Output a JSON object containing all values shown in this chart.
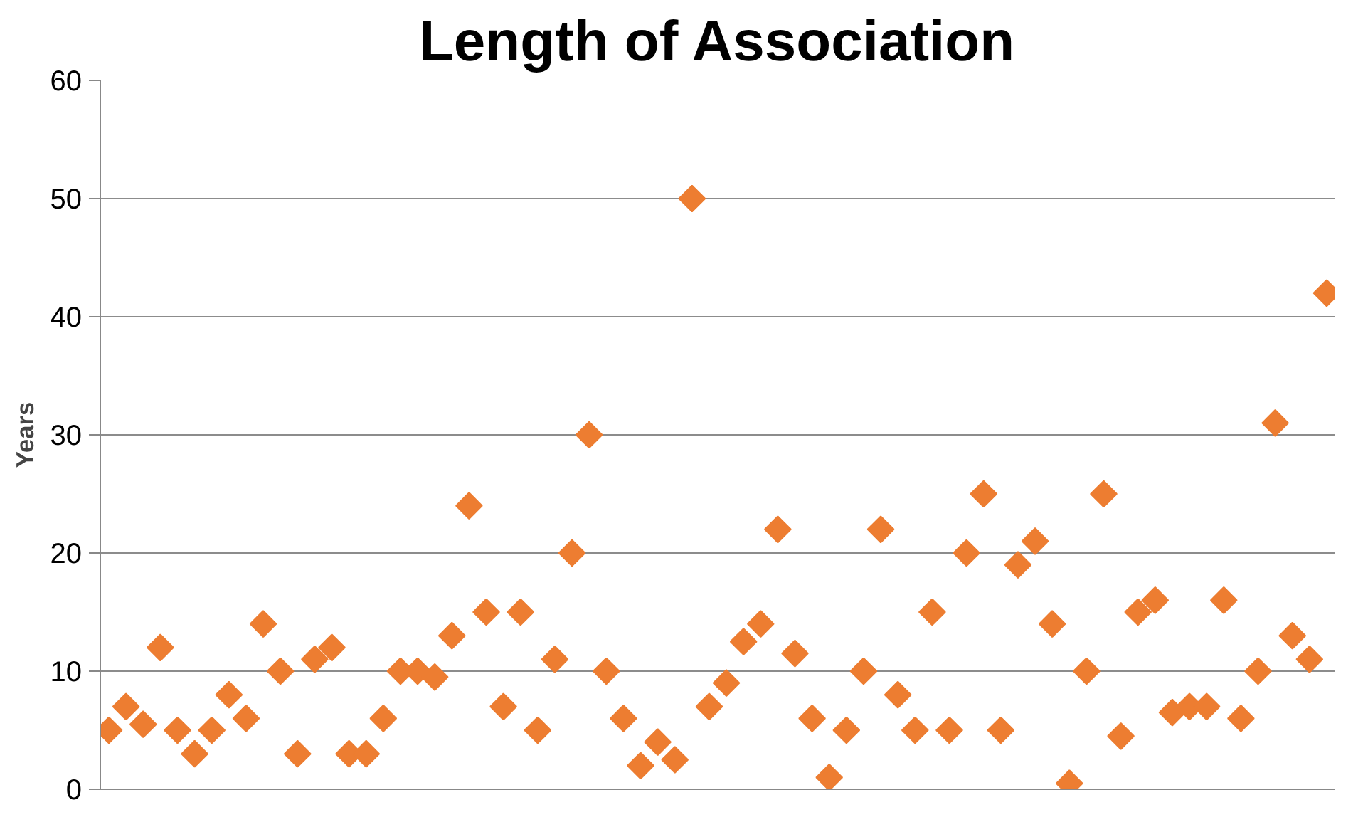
{
  "chart_data": {
    "type": "scatter",
    "title": "Length of Association",
    "ylabel": "Years",
    "categories": [
      null,
      null,
      null,
      null,
      null,
      null,
      null,
      null,
      null,
      null,
      null,
      null,
      null,
      null,
      null,
      null,
      null,
      null,
      null,
      null,
      null,
      null,
      null,
      null,
      null,
      null,
      null,
      null,
      null,
      null,
      null,
      null,
      null,
      null,
      null,
      null,
      null,
      null,
      null,
      null,
      null,
      null,
      null,
      null,
      null,
      null,
      null,
      null,
      null,
      null,
      null,
      null,
      null,
      null,
      null,
      null,
      null,
      null,
      null,
      null,
      null,
      null,
      null,
      null,
      null,
      null,
      null,
      null,
      null,
      null,
      null,
      null
    ],
    "series": [
      {
        "color": "#ed7d31",
        "values": [
          5,
          7,
          5.5,
          12,
          5,
          3,
          5,
          8,
          6,
          14,
          10,
          3,
          11,
          12,
          3,
          3,
          6,
          10,
          10,
          9.5,
          13,
          24,
          15,
          7,
          15,
          5,
          11,
          20,
          30,
          10,
          6,
          2,
          4,
          2.5,
          50,
          7,
          9,
          12.5,
          14,
          22,
          11.5,
          6,
          1,
          5,
          10,
          22,
          8,
          5,
          15,
          5,
          20,
          25,
          5,
          19,
          21,
          14,
          0.5,
          10,
          25,
          4.5,
          15,
          16,
          6.5,
          7,
          7,
          16,
          6,
          10,
          31,
          13,
          11,
          42
        ]
      }
    ],
    "ylim": [
      0,
      60
    ],
    "yticks": [
      0,
      10,
      20,
      30,
      40,
      50,
      60
    ],
    "grid": "y",
    "marker": "diamond"
  }
}
